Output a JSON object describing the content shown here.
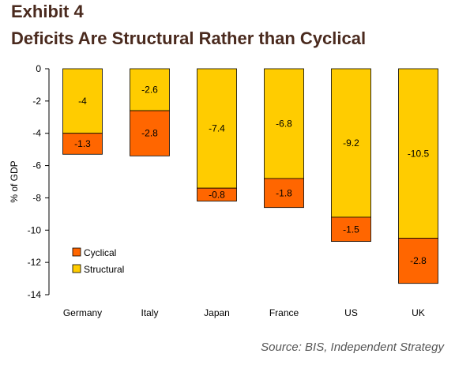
{
  "header": {
    "exhibit": "Exhibit 4",
    "title": "Deficits Are Structural Rather than Cyclical"
  },
  "source": "Source: BIS, Independent Strategy",
  "chart_data": {
    "type": "bar",
    "stacked": true,
    "categories": [
      "Germany",
      "Italy",
      "Japan",
      "France",
      "US",
      "UK"
    ],
    "series": [
      {
        "name": "Structural",
        "values": [
          -4,
          -2.6,
          -7.4,
          -6.8,
          -9.2,
          -10.5
        ],
        "color": "#FFCC00"
      },
      {
        "name": "Cyclical",
        "values": [
          -1.3,
          -2.8,
          -0.8,
          -1.8,
          -1.5,
          -2.8
        ],
        "color": "#FF6600"
      }
    ],
    "title": "Deficits Are Structural Rather than Cyclical",
    "xlabel": "",
    "ylabel": "% of GDP",
    "ylim": [
      -14,
      0
    ],
    "yticks": [
      0,
      -2,
      -4,
      -6,
      -8,
      -10,
      -12,
      -14
    ],
    "legend": [
      {
        "label": "Cyclical",
        "color": "#FF6600"
      },
      {
        "label": "Structural",
        "color": "#FFCC00"
      }
    ],
    "legend_position": "bottom-left",
    "grid": false
  }
}
